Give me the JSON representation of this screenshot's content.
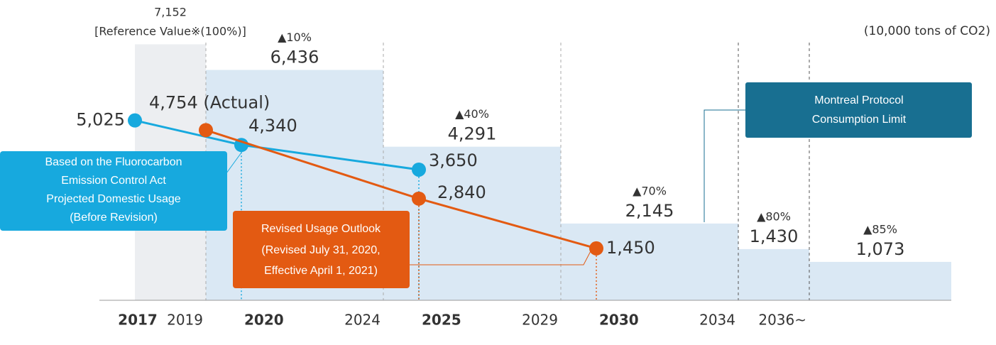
{
  "chart_data": {
    "type": "step-line",
    "unit": "(10,000 tons of CO2)",
    "ylim": [
      0,
      7200
    ],
    "xlim": [
      2017,
      2040
    ],
    "xticks": [
      2017,
      2019,
      2020,
      2024,
      2025,
      2029,
      2030,
      2034,
      {
        "value": 2036,
        "label": "2036~"
      }
    ],
    "xtick_colors": [
      "#1b6f98",
      "#444444",
      "#1b6f98",
      "#444444",
      "#e35a12",
      "#444444",
      "#e35a12",
      "#444444",
      "#444444"
    ],
    "reference": {
      "x": [
        2017,
        2019
      ],
      "value": 7152,
      "value_label": "7,152",
      "label": "[Reference Value※(100%)]",
      "color": "#eceef1"
    },
    "limit": {
      "name": [
        "Montreal Protocol",
        "Consumption Limit"
      ],
      "color": "#dae8f4",
      "box_color": "#186f91",
      "x": [
        2019,
        2024,
        2029,
        2034,
        2036
      ],
      "values": [
        6436,
        4291,
        2145,
        1430,
        1073
      ],
      "value_labels": [
        "6,436",
        "4,291",
        "2,145",
        "1,430",
        "1,073"
      ],
      "reductions": [
        "▲10%",
        "▲40%",
        "▲70%",
        "▲80%",
        "▲85%"
      ]
    },
    "series": [
      {
        "name": [
          "Based on the Fluorocarbon",
          "Emission Control Act",
          "Projected Domestic Usage",
          "(Before Revision)"
        ],
        "color": "#17a9de",
        "label_color": "#1b6f98",
        "x": [
          2017,
          2020,
          2025
        ],
        "values": [
          5025,
          4340,
          3650
        ],
        "value_labels": [
          "5,025",
          "4,340",
          "3,650"
        ]
      },
      {
        "name": [
          "Revised Usage Outlook",
          "(Revised July 31, 2020,",
          "Effective April 1, 2021)"
        ],
        "color": "#e35a12",
        "label_color": "#e35a12",
        "x": [
          2019,
          2025,
          2030
        ],
        "values": [
          4754,
          2840,
          1450
        ],
        "value_labels": [
          "4,754 (Actual)",
          "2,840",
          "1,450"
        ]
      }
    ]
  }
}
